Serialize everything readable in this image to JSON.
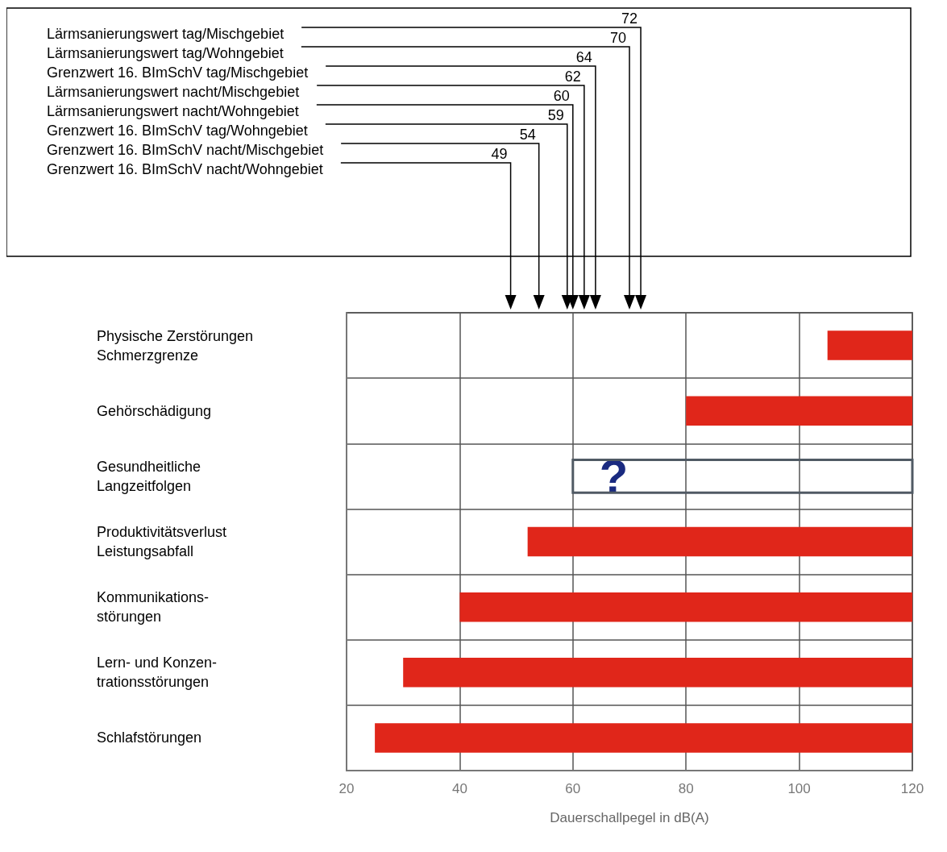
{
  "chart_data": {
    "type": "bar",
    "orientation": "horizontal",
    "xlabel": "Dauerschallpegel in dB(A)",
    "categories": [
      "Physische Zerstörungen\nSchmerzgrenze",
      "Gehörschädigung",
      "Gesundheitliche\nLangzeitfolgen",
      "Produktivitätsverlust\nLeistungsabfall",
      "Kommunikations-\nstörungen",
      "Lern- und Konzen-\ntrationsstörungen",
      "Schlafstörungen"
    ],
    "series": [
      {
        "color": "#e0261a",
        "base": [
          105,
          80,
          null,
          52,
          40,
          30,
          25
        ],
        "values": [
          15,
          40,
          null,
          68,
          80,
          90,
          95
        ]
      },
      {
        "color": "#505a64",
        "line_style": "solid",
        "base": [
          null,
          null,
          60,
          null,
          null,
          null,
          null
        ],
        "values": [
          null,
          null,
          60,
          null,
          null,
          null,
          null
        ]
      }
    ],
    "xlim": [
      20,
      120
    ],
    "xticks": [
      20,
      40,
      60,
      80,
      100,
      120
    ],
    "grid": true,
    "annotations": [
      "Lärmsanierungswert tag/Mischgebiet",
      "72",
      "Lärmsanierungswert tag/Wohngebiet",
      "70",
      "Grenzwert 16. BImSchV tag/Mischgebiet",
      "64",
      "Lärmsanierungswert nacht/Mischgebiet",
      "62",
      "Lärmsanierungswert nacht/Wohngebiet",
      "60",
      "Grenzwert 16. BImSchV tag/Wohngebiet",
      "59",
      "Grenzwert 16. BImSchV nacht/Mischgebiet",
      "54",
      "Grenzwert 16. BImSchV nacht/Wohngebiet",
      "49",
      "?"
    ]
  }
}
